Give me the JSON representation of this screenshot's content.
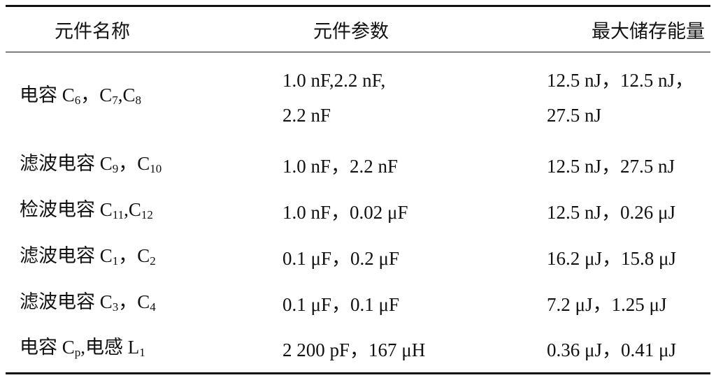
{
  "table": {
    "header": [
      "元件名称",
      "元件参数",
      "最大储存能量"
    ],
    "rows": [
      [
        [
          [
            "电容 C",
            {
              "sub": "6"
            },
            "，C",
            {
              "sub": "7"
            },
            ",C",
            {
              "sub": "8"
            }
          ]
        ],
        [
          [
            "1.0 nF,2.2 nF,"
          ],
          [
            "2.2 nF"
          ]
        ],
        [
          [
            "12.5 nJ，12.5 nJ，"
          ],
          [
            "27.5 nJ"
          ]
        ]
      ],
      [
        [
          [
            "滤波电容 C",
            {
              "sub": "9"
            },
            "，C",
            {
              "sub": "10"
            }
          ]
        ],
        [
          [
            "1.0 nF，2.2 nF"
          ]
        ],
        [
          [
            "12.5 nJ，27.5 nJ"
          ]
        ]
      ],
      [
        [
          [
            "检波电容 C",
            {
              "sub": "11"
            },
            ",C",
            {
              "sub": "12"
            }
          ]
        ],
        [
          [
            "1.0 nF，0.02 μF"
          ]
        ],
        [
          [
            "12.5 nJ，0.26 μJ"
          ]
        ]
      ],
      [
        [
          [
            "滤波电容 C",
            {
              "sub": "1"
            },
            "，C",
            {
              "sub": "2"
            }
          ]
        ],
        [
          [
            "0.1 μF，0.2 μF"
          ]
        ],
        [
          [
            "16.2 μJ，15.8 μJ"
          ]
        ]
      ],
      [
        [
          [
            "滤波电容 C",
            {
              "sub": "3"
            },
            "，C",
            {
              "sub": "4"
            }
          ]
        ],
        [
          [
            "0.1 μF，0.1 μF"
          ]
        ],
        [
          [
            "7.2 μJ，1.25 μJ"
          ]
        ]
      ],
      [
        [
          [
            "电容 C",
            {
              "sub": "p"
            },
            ",电感 L",
            {
              "sub": "1"
            }
          ]
        ],
        [
          [
            "2 200 pF，167 μH"
          ]
        ],
        [
          [
            "0.36 μJ，0.41 μJ"
          ]
        ]
      ]
    ]
  }
}
